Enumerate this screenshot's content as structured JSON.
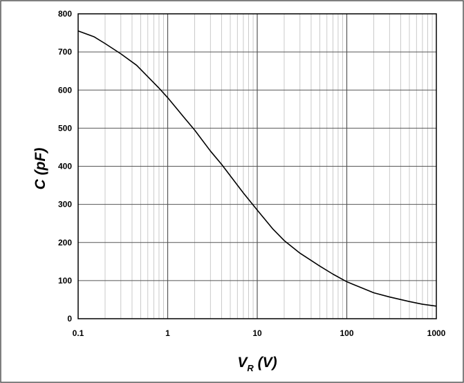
{
  "chart_data": {
    "type": "line",
    "title": "",
    "xlabel": "V",
    "xlabel_subscript": "R",
    "xlabel_unit": " (V)",
    "ylabel": "C (pF)",
    "x_scale": "log",
    "xlim": [
      0.1,
      1000
    ],
    "ylim": [
      0,
      800
    ],
    "grid": true,
    "x_ticks": [
      "0.1",
      "1",
      "10",
      "100",
      "1000"
    ],
    "y_ticks": [
      "0",
      "100",
      "200",
      "300",
      "400",
      "500",
      "600",
      "700",
      "800"
    ],
    "series": [
      {
        "x": [
          0.1,
          0.15,
          0.2,
          0.3,
          0.45,
          0.6,
          0.8,
          1,
          1.5,
          2,
          3,
          4,
          5,
          7,
          10,
          15,
          20,
          30,
          50,
          70,
          100,
          150,
          200,
          300,
          500,
          700,
          1000
        ],
        "y": [
          755,
          740,
          722,
          695,
          665,
          635,
          605,
          580,
          530,
          495,
          440,
          405,
          375,
          330,
          285,
          235,
          205,
          172,
          138,
          117,
          97,
          80,
          68,
          57,
          45,
          38,
          33
        ],
        "color": "#000000"
      }
    ]
  }
}
